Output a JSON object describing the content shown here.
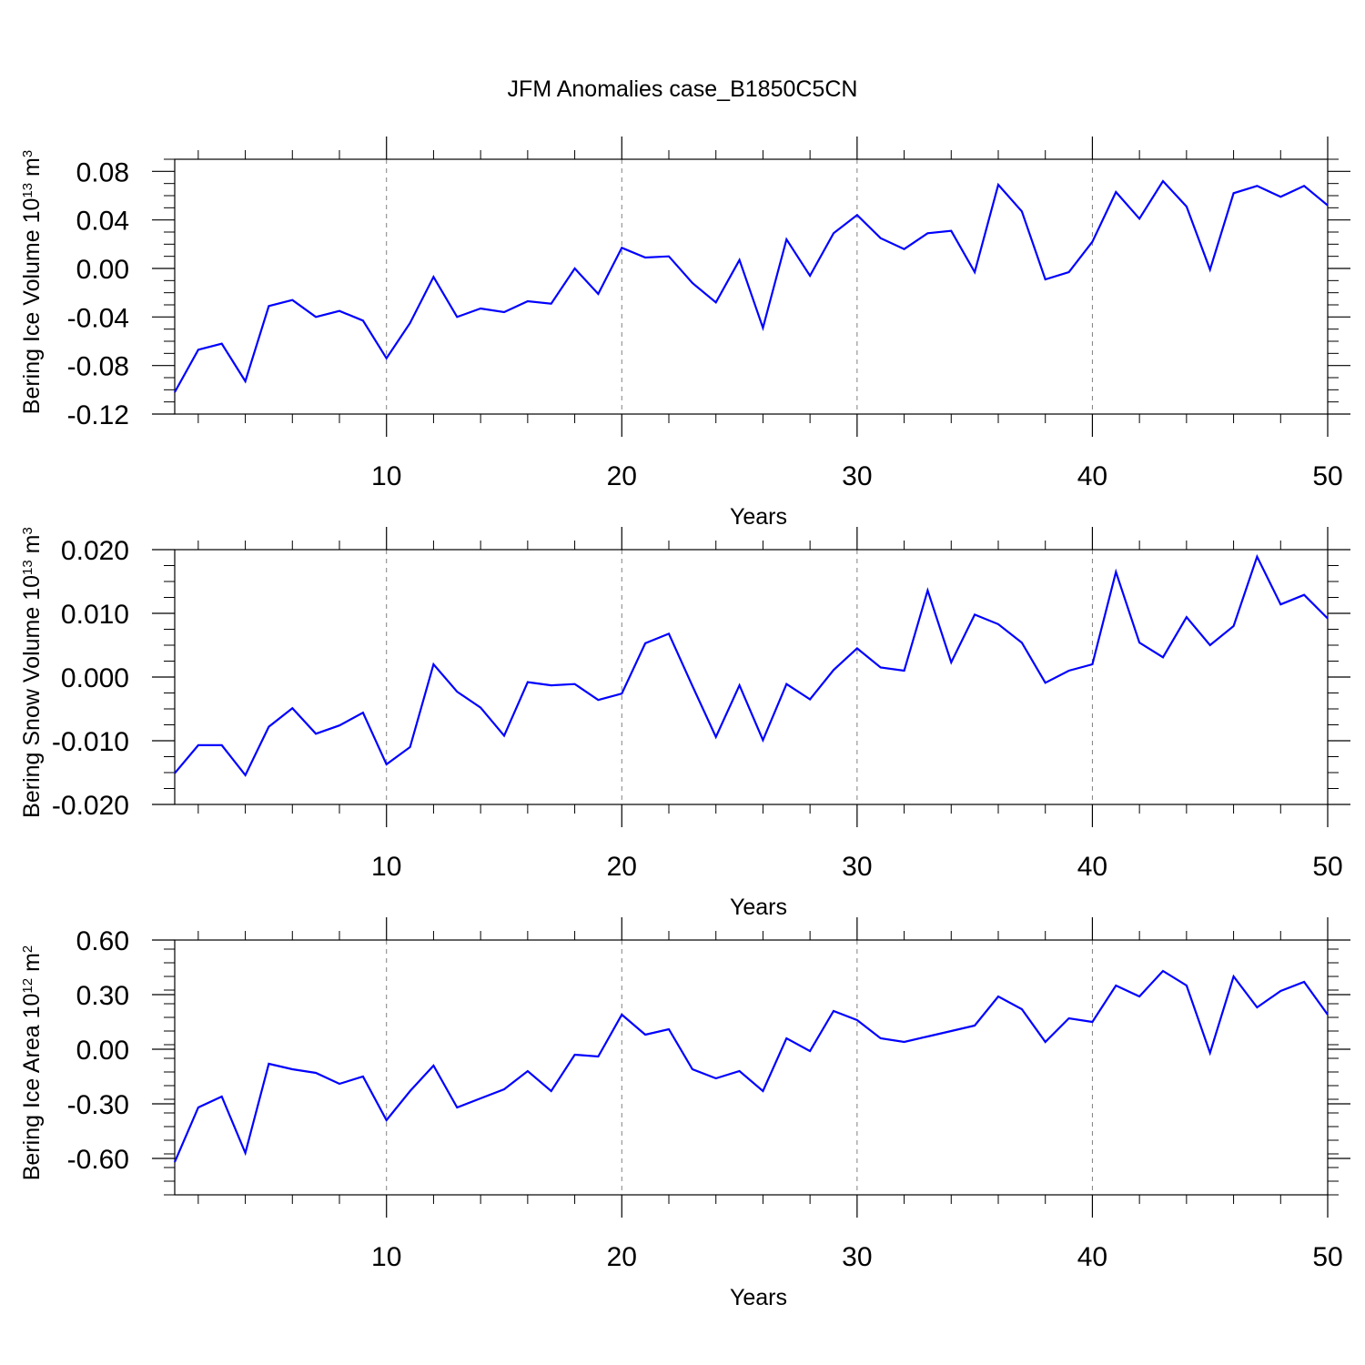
{
  "title": "JFM Anomalies case_B1850C5CN",
  "colors": {
    "line": "#0000ff",
    "axis": "#000000",
    "grid": "#808080"
  },
  "chart_data": [
    {
      "type": "line",
      "xlabel": "Years",
      "ylabel": {
        "prefix": "Bering Ice Volume 10",
        "exp": "13",
        "unit": " m",
        "unit_exp": "3"
      },
      "xlim": [
        1,
        50
      ],
      "ylim": [
        -0.12,
        0.09
      ],
      "xticks": [
        10,
        20,
        30,
        40,
        50
      ],
      "yticks": [
        -0.12,
        -0.08,
        -0.04,
        0.0,
        0.04,
        0.08
      ],
      "ytick_labels": [
        "-0.12",
        "-0.08",
        "-0.04",
        "0.00",
        "0.04",
        "0.08"
      ],
      "grid": "vertical dashed at major x ticks",
      "series": [
        {
          "values": [
            -0.102,
            -0.067,
            -0.062,
            -0.093,
            -0.031,
            -0.026,
            -0.04,
            -0.035,
            -0.043,
            -0.074,
            -0.045,
            -0.007,
            -0.04,
            -0.033,
            -0.036,
            -0.027,
            -0.029,
            0.0,
            -0.021,
            0.017,
            0.009,
            0.01,
            -0.012,
            -0.028,
            0.007,
            -0.049,
            0.024,
            -0.006,
            0.029,
            0.044,
            0.025,
            0.016,
            0.029,
            0.031,
            -0.003,
            0.069,
            0.047,
            -0.009,
            -0.003,
            0.022,
            0.063,
            0.041,
            0.072,
            0.051,
            -0.001,
            0.062,
            0.068,
            0.059,
            0.068,
            0.052
          ]
        }
      ]
    },
    {
      "type": "line",
      "xlabel": "Years",
      "ylabel": {
        "prefix": "Bering Snow Volume 10",
        "exp": "13",
        "unit": " m",
        "unit_exp": "3"
      },
      "xlim": [
        1,
        50
      ],
      "ylim": [
        -0.02,
        0.02
      ],
      "xticks": [
        10,
        20,
        30,
        40,
        50
      ],
      "yticks": [
        -0.02,
        -0.01,
        0.0,
        0.01,
        0.02
      ],
      "ytick_labels": [
        "-0.020",
        "-0.010",
        "0.000",
        "0.010",
        "0.020"
      ],
      "grid": "vertical dashed at major x ticks",
      "series": [
        {
          "values": [
            -0.0151,
            -0.0107,
            -0.0107,
            -0.0154,
            -0.0078,
            -0.0049,
            -0.0089,
            -0.0076,
            -0.0056,
            -0.0137,
            -0.011,
            0.002,
            -0.0023,
            -0.0048,
            -0.0092,
            -0.0008,
            -0.0013,
            -0.0011,
            -0.0036,
            -0.0026,
            0.0053,
            0.0068,
            -0.0014,
            -0.0094,
            -0.0013,
            -0.0099,
            -0.0011,
            -0.0035,
            0.0011,
            0.0045,
            0.0015,
            0.001,
            0.0136,
            0.0023,
            0.0098,
            0.0083,
            0.0054,
            -0.0009,
            0.001,
            0.002,
            0.0165,
            0.0054,
            0.0031,
            0.0094,
            0.005,
            0.008,
            0.0189,
            0.0114,
            0.0129,
            0.0092
          ]
        }
      ]
    },
    {
      "type": "line",
      "xlabel": "Years",
      "ylabel": {
        "prefix": "Bering Ice Area 10",
        "exp": "12",
        "unit": " m",
        "unit_exp": "2"
      },
      "xlim": [
        1,
        50
      ],
      "ylim": [
        -0.8,
        0.6
      ],
      "xticks": [
        10,
        20,
        30,
        40,
        50
      ],
      "yticks": [
        -0.6,
        -0.3,
        0.0,
        0.3,
        0.6
      ],
      "ytick_labels": [
        "-0.60",
        "-0.30",
        "0.00",
        "0.30",
        "0.60"
      ],
      "grid": "vertical dashed at major x ticks",
      "series": [
        {
          "values": [
            -0.62,
            -0.32,
            -0.26,
            -0.57,
            -0.08,
            -0.11,
            -0.13,
            -0.19,
            -0.15,
            -0.39,
            -0.23,
            -0.09,
            -0.32,
            -0.27,
            -0.22,
            -0.12,
            -0.23,
            -0.03,
            -0.04,
            0.19,
            0.08,
            0.11,
            -0.11,
            -0.16,
            -0.12,
            -0.23,
            0.06,
            -0.01,
            0.21,
            0.16,
            0.06,
            0.04,
            0.07,
            0.1,
            0.13,
            0.29,
            0.22,
            0.04,
            0.17,
            0.15,
            0.35,
            0.29,
            0.43,
            0.35,
            -0.02,
            0.4,
            0.23,
            0.32,
            0.37,
            0.19
          ]
        }
      ]
    }
  ]
}
